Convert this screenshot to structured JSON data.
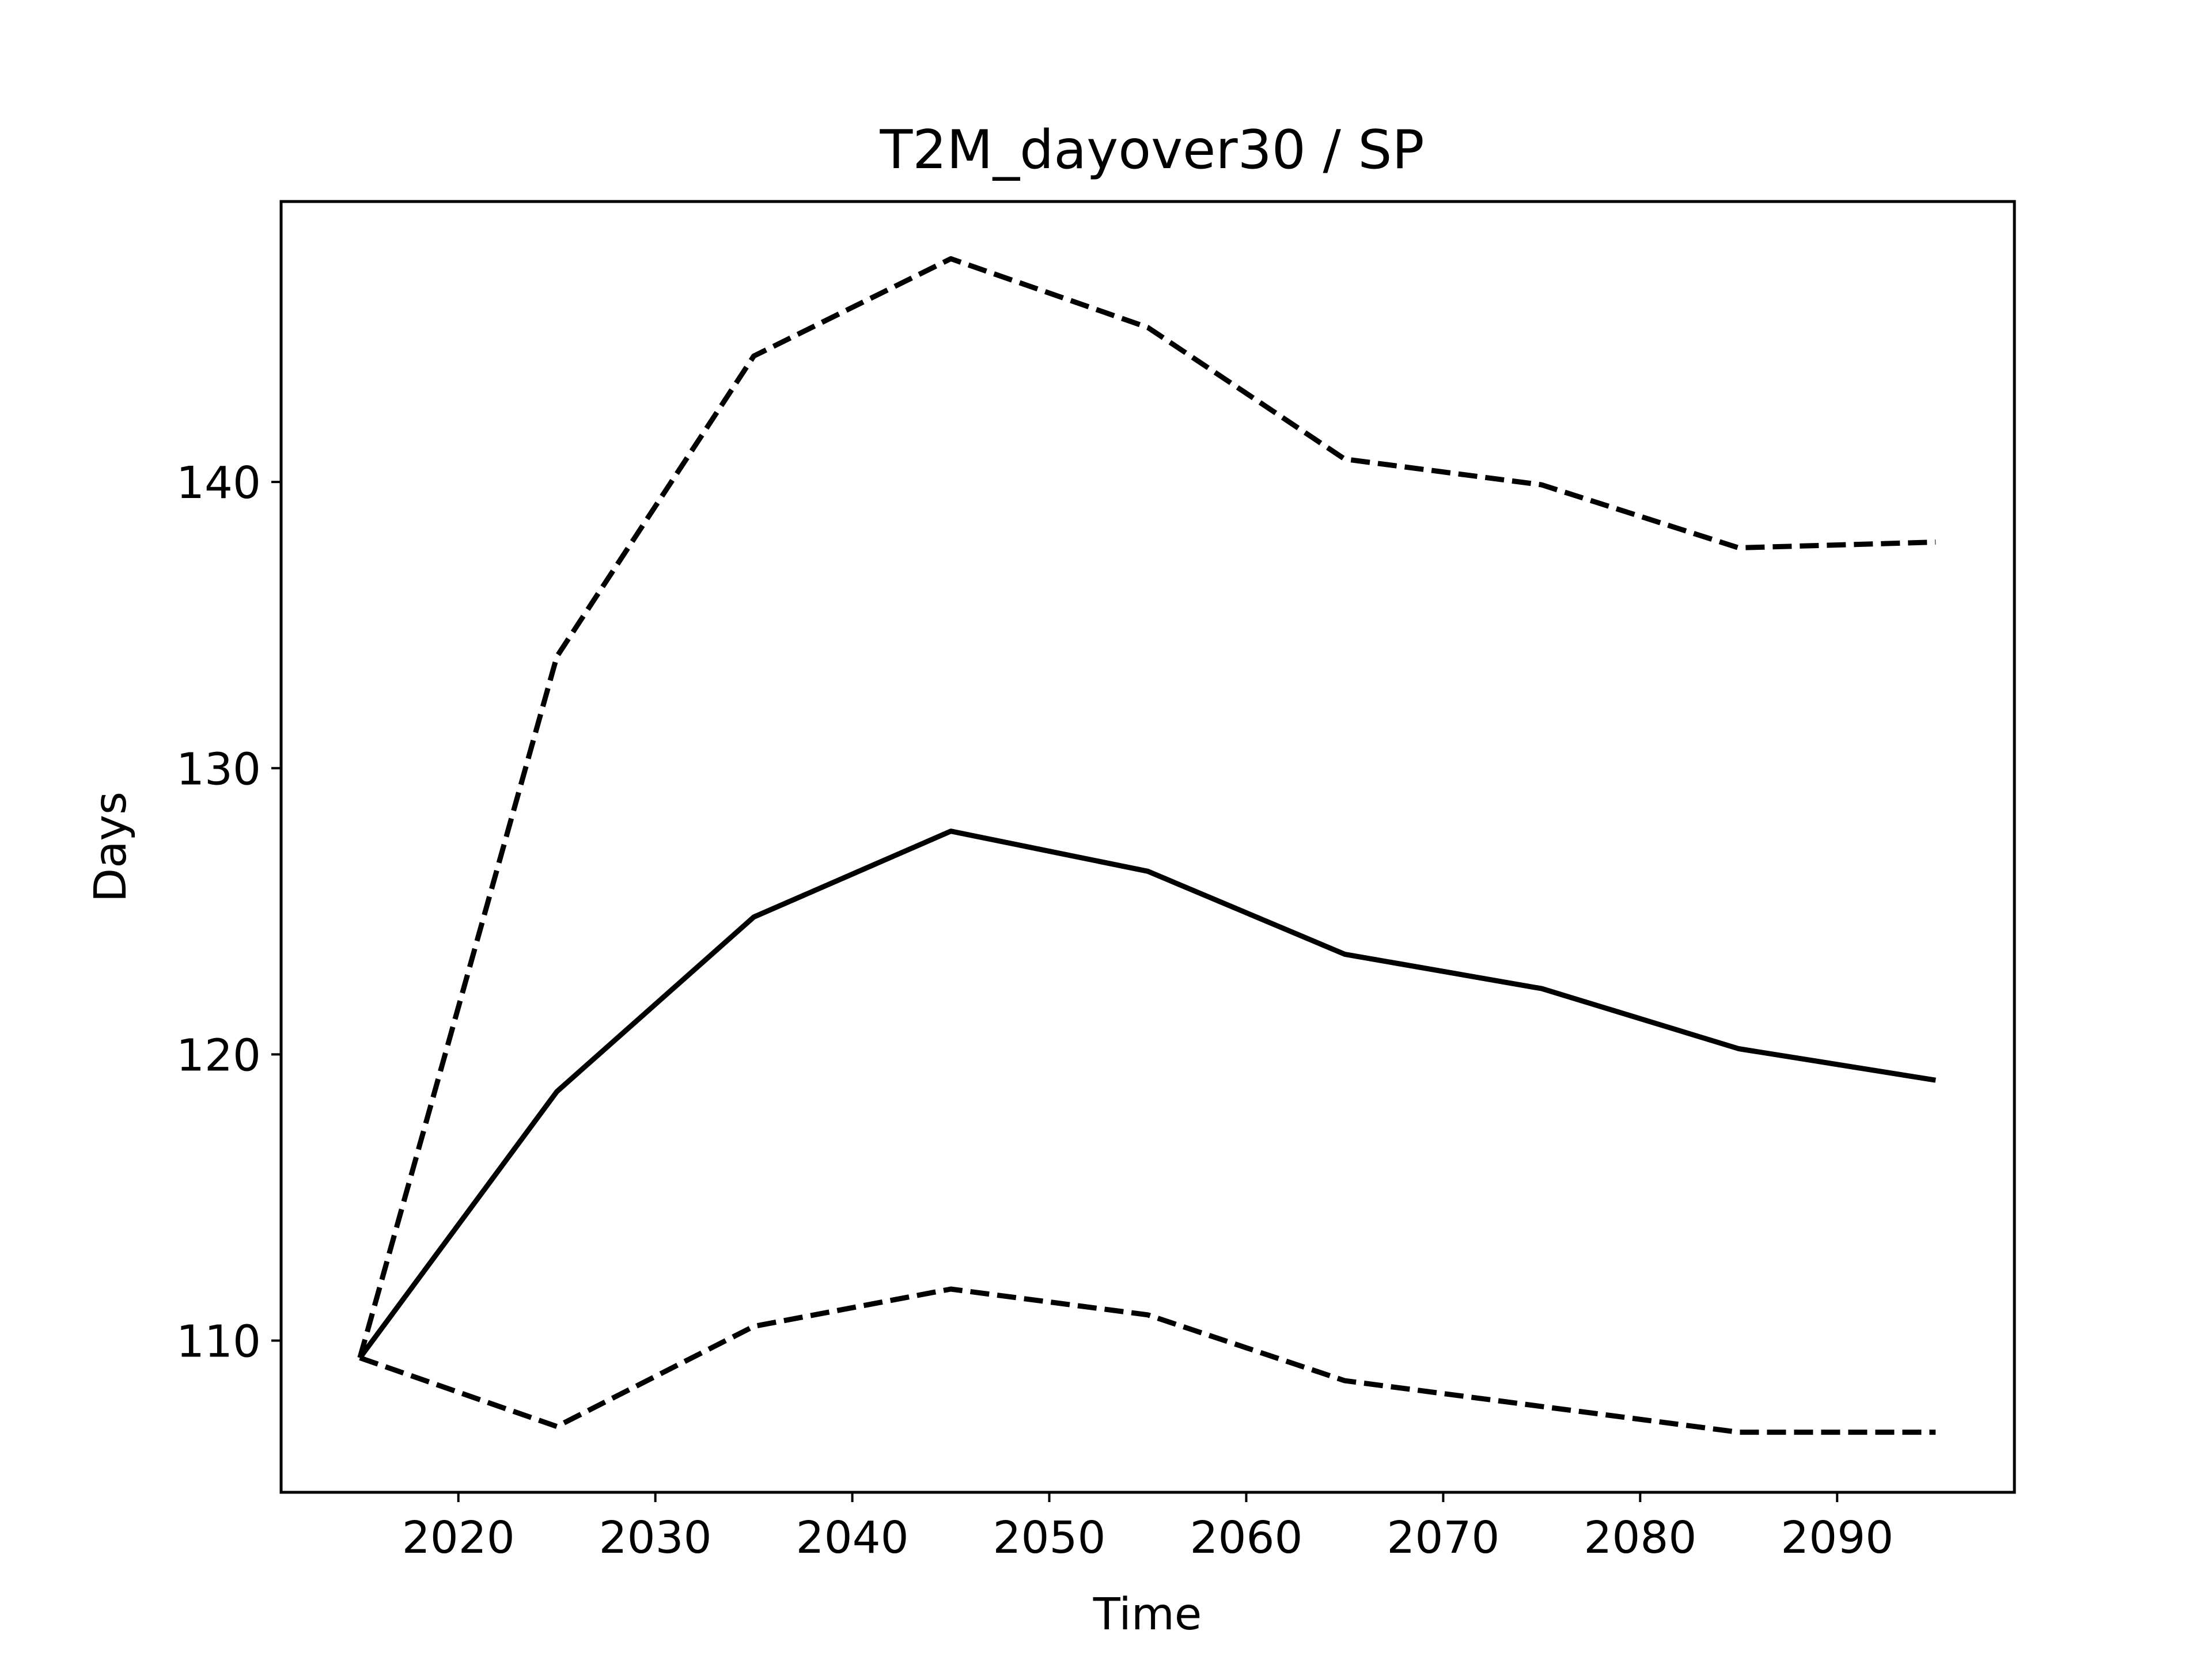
{
  "chart_data": {
    "type": "line",
    "title": "T2M_dayover30 / SP",
    "xlabel": "Time",
    "ylabel": "Days",
    "xlim": [
      2011,
      2099
    ],
    "ylim": [
      104.7,
      149.8
    ],
    "xticks": [
      2020,
      2030,
      2040,
      2050,
      2060,
      2070,
      2080,
      2090
    ],
    "yticks": [
      110,
      120,
      130,
      140
    ],
    "xtick_labels": [
      "2020",
      "2030",
      "2040",
      "2050",
      "2060",
      "2070",
      "2080",
      "2090"
    ],
    "ytick_labels": [
      "110",
      "120",
      "130",
      "140"
    ],
    "grid": false,
    "legend": false,
    "x": [
      2015,
      2025,
      2035,
      2045,
      2055,
      2065,
      2075,
      2085,
      2095
    ],
    "series": [
      {
        "style": "dashed",
        "color": "#000000",
        "values": [
          109.4,
          133.9,
          144.4,
          147.8,
          145.4,
          140.8,
          139.9,
          137.7,
          137.9
        ]
      },
      {
        "style": "solid",
        "color": "#000000",
        "values": [
          109.4,
          118.7,
          124.8,
          127.8,
          126.4,
          123.5,
          122.3,
          120.2,
          119.1
        ]
      },
      {
        "style": "dashed",
        "color": "#000000",
        "values": [
          109.4,
          107.0,
          110.5,
          111.8,
          110.9,
          108.6,
          107.7,
          106.8,
          106.8
        ]
      }
    ]
  }
}
